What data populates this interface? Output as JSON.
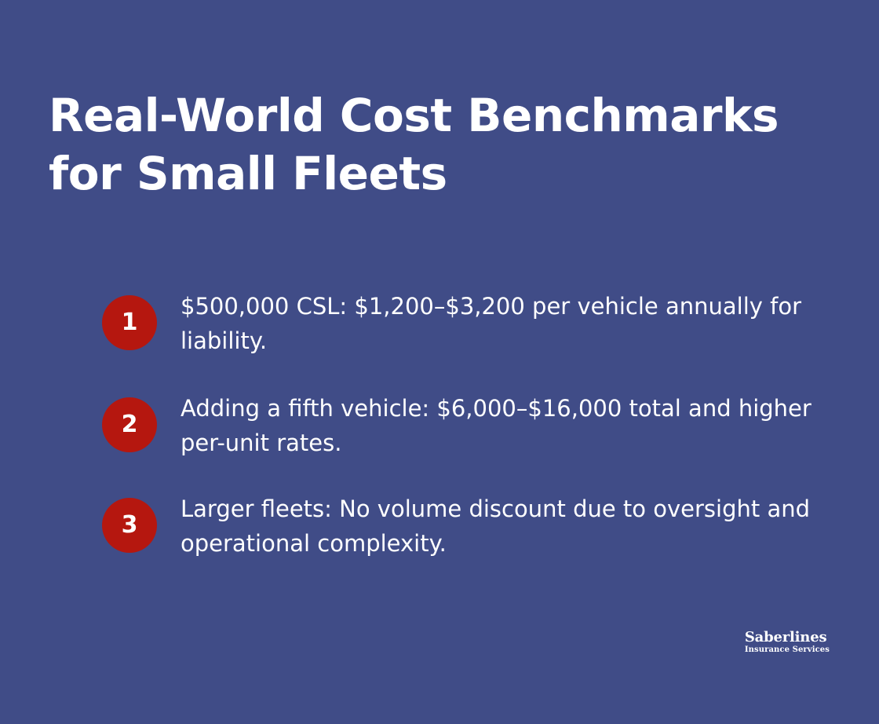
{
  "title": "Real-World Cost Benchmarks for Small Fleets",
  "items": [
    {
      "number": "1",
      "text": "$500,000 CSL: $1,200–$3,200 per vehicle annually for liability."
    },
    {
      "number": "2",
      "text": "Adding a fifth vehicle: $6,000–$16,000 total and higher per-unit rates."
    },
    {
      "number": "3",
      "text": "Larger fleets: No volume discount due to oversight and operational complexity."
    }
  ],
  "logo": {
    "name": "Saberlines",
    "subtitle": "Insurance Services"
  },
  "colors": {
    "background": "#404c87",
    "badge": "#b5170f",
    "text": "#ffffff"
  }
}
